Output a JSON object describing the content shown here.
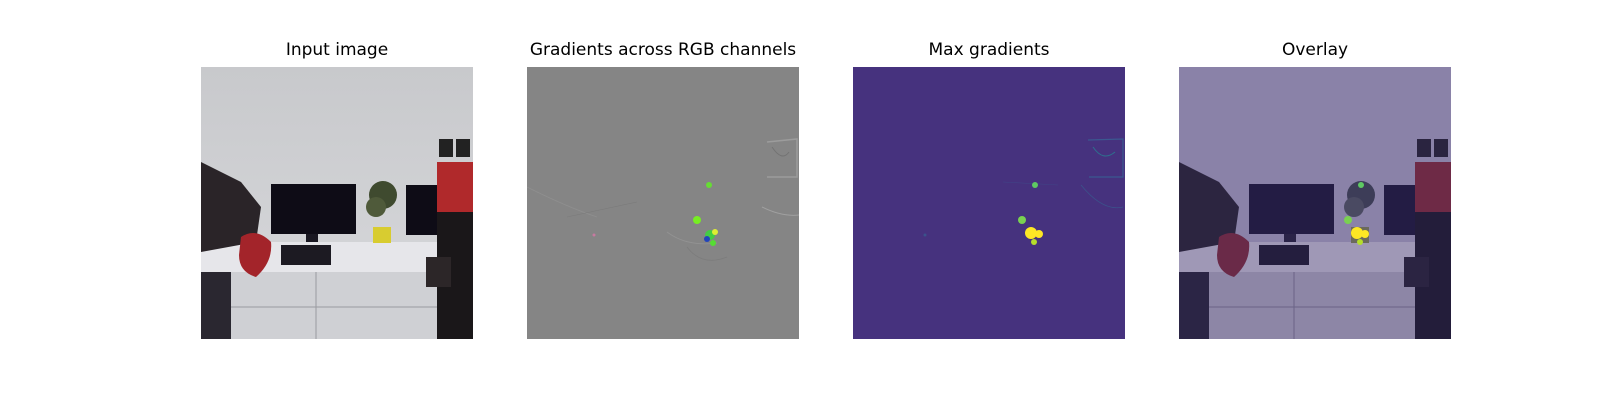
{
  "figure": {
    "panels": [
      {
        "title": "Input image"
      },
      {
        "title": "Gradients across RGB channels"
      },
      {
        "title": "Max gradients"
      },
      {
        "title": "Overlay"
      }
    ]
  }
}
